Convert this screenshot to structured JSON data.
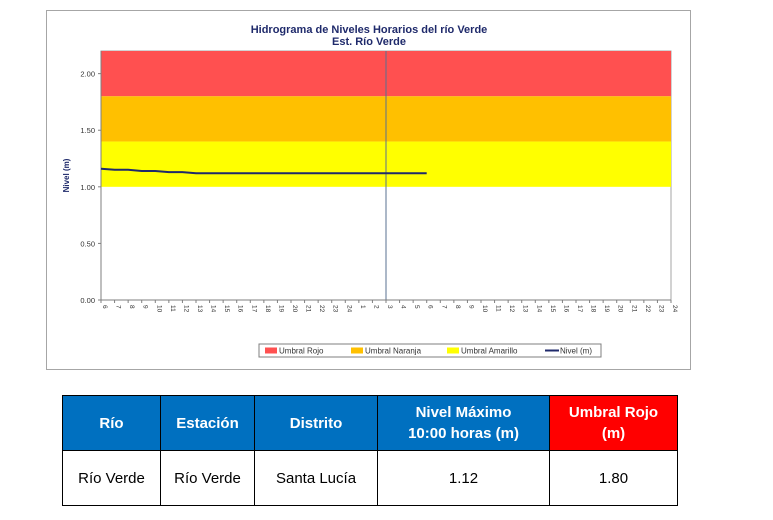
{
  "chart_data": {
    "type": "line",
    "title": "Hidrograma de Niveles Horarios del río Verde",
    "subtitle": "Est. Río Verde",
    "ylabel": "Nivel (m)",
    "xlabel": "",
    "ylim": [
      0,
      2.2
    ],
    "yticks": [
      "0.00",
      "0.50",
      "1.00",
      "1.50",
      "2.00"
    ],
    "xticks": [
      "6",
      "7",
      "8",
      "9",
      "10",
      "11",
      "12",
      "13",
      "14",
      "15",
      "16",
      "17",
      "18",
      "19",
      "20",
      "21",
      "22",
      "23",
      "24",
      "1",
      "2",
      "3",
      "4",
      "5",
      "6",
      "7",
      "8",
      "9",
      "10",
      "11",
      "12",
      "13",
      "14",
      "15",
      "16",
      "17",
      "18",
      "19",
      "20",
      "21",
      "22",
      "23",
      "24"
    ],
    "day_divider_index": 21,
    "bands": [
      {
        "name": "Umbral Rojo",
        "from": 1.8,
        "to": 2.2,
        "color": "#ff5050"
      },
      {
        "name": "Umbral Naranja",
        "from": 1.4,
        "to": 1.8,
        "color": "#ffc000"
      },
      {
        "name": "Umbral Amarillo",
        "from": 1.0,
        "to": 1.4,
        "color": "#ffff00"
      }
    ],
    "series": [
      {
        "name": "Nivel (m)",
        "color": "#1f2a6b",
        "x": [
          0,
          1,
          2,
          3,
          4,
          5,
          6,
          7,
          8,
          9,
          10,
          11,
          12,
          13,
          14,
          15,
          16,
          17,
          18,
          19,
          20,
          21,
          22,
          23,
          24
        ],
        "values": [
          1.16,
          1.15,
          1.15,
          1.14,
          1.14,
          1.13,
          1.13,
          1.12,
          1.12,
          1.12,
          1.12,
          1.12,
          1.12,
          1.12,
          1.12,
          1.12,
          1.12,
          1.12,
          1.12,
          1.12,
          1.12,
          1.12,
          1.12,
          1.12,
          1.12
        ]
      }
    ],
    "legend": [
      "Umbral Rojo",
      "Umbral Naranja",
      "Umbral Amarillo",
      "Nivel (m)"
    ],
    "legend_position": "bottom"
  },
  "table": {
    "headers": [
      "Río",
      "Estación",
      "Distrito",
      "Nivel Máximo 10:00 horas (m)",
      "Umbral Rojo (m)"
    ],
    "rows": [
      [
        "Río Verde",
        "Río Verde",
        "Santa Lucía",
        "1.12",
        "1.80"
      ]
    ]
  }
}
